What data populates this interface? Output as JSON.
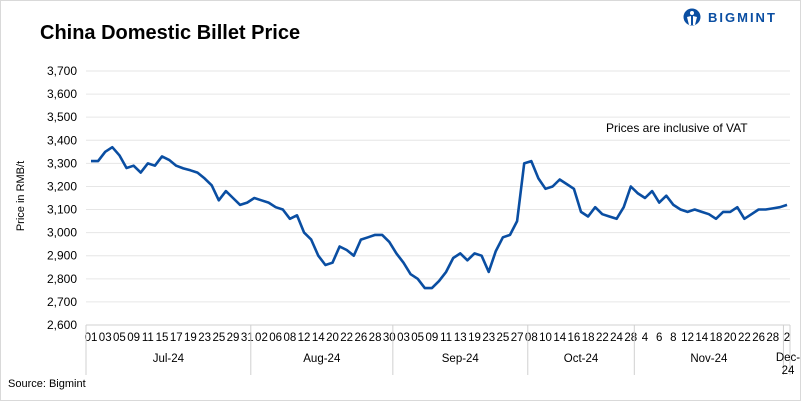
{
  "header": {
    "title": "China Domestic Billet Price",
    "logo_text": "BIGMINT"
  },
  "annotation": "Prices are inclusive of VAT",
  "source": "Source: Bigmint",
  "colors": {
    "line": "#0a4ea2",
    "grid": "#e6e6e6",
    "logo": "#0a4ea2"
  },
  "chart_data": {
    "type": "line",
    "title": "China Domestic Billet Price",
    "ylabel": "Price in RMB/t",
    "ylim": [
      2600,
      3700
    ],
    "yticks": [
      2600,
      2700,
      2800,
      2900,
      3000,
      3100,
      3200,
      3300,
      3400,
      3500,
      3600,
      3700
    ],
    "ytick_labels": [
      "2,600",
      "2,700",
      "2,800",
      "2,900",
      "3,000",
      "3,100",
      "3,200",
      "3,300",
      "3,400",
      "3,500",
      "3,600",
      "3,700"
    ],
    "grid": "horizontal",
    "months": [
      {
        "label": "Jul-24",
        "days": [
          "01",
          "02",
          "03",
          "04",
          "05",
          "08",
          "09",
          "10",
          "11",
          "12",
          "15",
          "16",
          "17",
          "18",
          "19",
          "22",
          "23",
          "24",
          "25",
          "26",
          "29",
          "30",
          "31"
        ]
      },
      {
        "label": "Aug-24",
        "days": [
          "01",
          "02",
          "05",
          "06",
          "07",
          "08",
          "09",
          "12",
          "13",
          "14",
          "16",
          "20",
          "21",
          "22",
          "23",
          "26",
          "27",
          "28",
          "29",
          "30"
        ]
      },
      {
        "label": "Sep-24",
        "days": [
          "02",
          "03",
          "04",
          "05",
          "06",
          "09",
          "10",
          "11",
          "12",
          "13",
          "18",
          "19",
          "20",
          "23",
          "24",
          "25",
          "26",
          "27",
          "30"
        ]
      },
      {
        "label": "Oct-24",
        "days": [
          "08",
          "09",
          "10",
          "11",
          "14",
          "15",
          "16",
          "17",
          "18",
          "21",
          "22",
          "23",
          "24",
          "25",
          "28"
        ]
      },
      {
        "label": "Nov-24",
        "days": [
          "1",
          "4",
          "5",
          "6",
          "7",
          "8",
          "11",
          "12",
          "13",
          "14",
          "15",
          "18",
          "19",
          "20",
          "21",
          "22",
          "25",
          "26",
          "27",
          "28",
          "29"
        ]
      },
      {
        "label": "Dec-24",
        "days": [
          "2"
        ]
      }
    ],
    "values": [
      3310,
      3310,
      3350,
      3370,
      3335,
      3280,
      3290,
      3260,
      3300,
      3290,
      3330,
      3315,
      3290,
      3278,
      3270,
      3260,
      3235,
      3205,
      3140,
      3180,
      3150,
      3120,
      3130,
      3150,
      3140,
      3130,
      3110,
      3100,
      3060,
      3075,
      3000,
      2970,
      2900,
      2860,
      2870,
      2940,
      2925,
      2900,
      2970,
      2980,
      2990,
      2990,
      2960,
      2910,
      2870,
      2820,
      2800,
      2760,
      2760,
      2790,
      2830,
      2890,
      2910,
      2880,
      2910,
      2900,
      2830,
      2920,
      2980,
      2990,
      3050,
      3300,
      3310,
      3235,
      3190,
      3200,
      3230,
      3210,
      3190,
      3090,
      3070,
      3110,
      3080,
      3070,
      3060,
      3110,
      3200,
      3170,
      3150,
      3180,
      3130,
      3160,
      3120,
      3100,
      3090,
      3100,
      3090,
      3080,
      3060,
      3090,
      3090,
      3110,
      3060,
      3080,
      3100,
      3100,
      3105,
      3110,
      3120
    ]
  }
}
